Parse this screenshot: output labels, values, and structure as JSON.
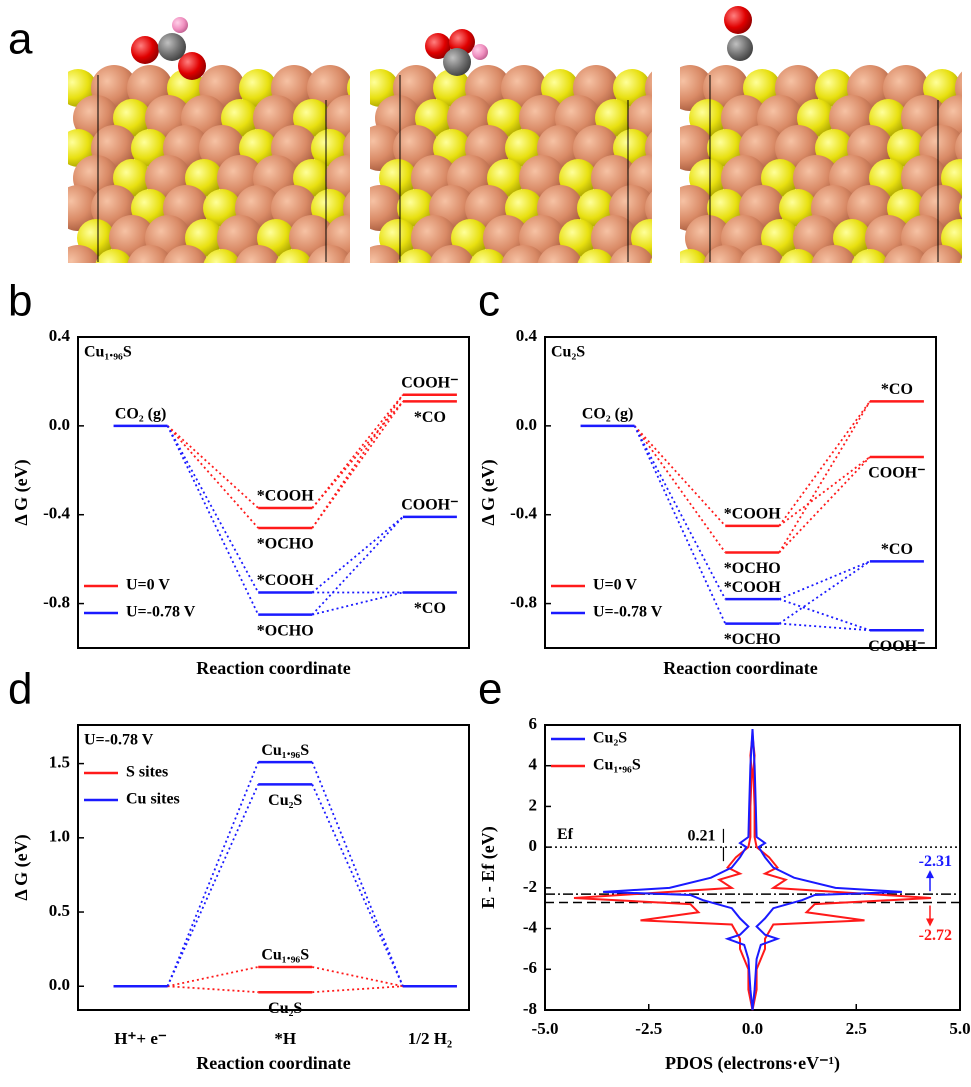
{
  "panel_labels": [
    "a",
    "b",
    "c",
    "d",
    "e"
  ],
  "chart_data": [
    {
      "type": "energy_levels",
      "annotation": "Cu₁.₉₆S",
      "y_label": "Δ G (eV)",
      "x_label": "Reaction coordinate",
      "ylim": [
        -1.0,
        0.4
      ],
      "yticks": [
        0.4,
        {
          "value": 0,
          "label": "0.0"
        },
        -0.4,
        -0.8
      ],
      "legend": "lower left",
      "series": [
        {
          "name": "U=0 V",
          "color": "#ff1a1a",
          "x": [
            1,
            1,
            2,
            2
          ],
          "values": [
            -0.37,
            -0.46,
            0.14,
            0.11
          ],
          "labels": [
            "*COOH",
            "*OCHO",
            "COOH⁻",
            "*CO"
          ]
        },
        {
          "name": "U=-0.78 V",
          "color": "#1a1aff",
          "x": [
            0,
            1,
            1,
            2,
            2
          ],
          "values": [
            0,
            -0.75,
            -0.85,
            -0.41,
            -0.75
          ],
          "labels": [
            "CO₂ (g)",
            "*COOH",
            "*OCHO",
            "COOH⁻",
            "*CO"
          ]
        }
      ]
    },
    {
      "type": "energy_levels",
      "annotation": "Cu₂S",
      "y_label": "Δ G (eV)",
      "x_label": "Reaction coordinate",
      "ylim": [
        -1.0,
        0.4
      ],
      "yticks": [
        0.4,
        {
          "value": 0,
          "label": "0.0"
        },
        -0.4,
        -0.8
      ],
      "legend": "lower left",
      "series": [
        {
          "name": "U=0 V",
          "color": "#ff1a1a",
          "x": [
            1,
            1,
            2,
            2
          ],
          "values": [
            -0.45,
            -0.57,
            0.11,
            -0.14
          ],
          "labels": [
            "*COOH",
            "*OCHO",
            "*CO",
            "COOH⁻"
          ]
        },
        {
          "name": "U=-0.78 V",
          "color": "#1a1aff",
          "x": [
            0,
            1,
            1,
            2,
            2
          ],
          "values": [
            0,
            -0.78,
            -0.89,
            -0.61,
            -0.92
          ],
          "labels": [
            "CO₂ (g)",
            "*COOH",
            "*OCHO",
            "*CO",
            "COOH⁻"
          ]
        }
      ]
    },
    {
      "type": "energy_levels",
      "annotation": "U=-0.78 V",
      "y_label": "Δ G (eV)",
      "x_label": "Reaction coordinate",
      "categories": [
        "H⁺+ e⁻",
        "*H",
        "1/2 H₂"
      ],
      "ylim": [
        -0.16,
        1.76
      ],
      "yticks": [
        {
          "value": 0,
          "label": "0.0"
        },
        0.5,
        {
          "value": 1,
          "label": "1.0"
        },
        1.5
      ],
      "legend": "upper left",
      "series": [
        {
          "name": "S sites",
          "color": "#ff1a1a",
          "x": [
            0,
            1,
            1,
            2
          ],
          "values": [
            0,
            0.13,
            -0.04,
            0
          ],
          "labels": [
            null,
            "Cu₁.₉₆S",
            "Cu₂S",
            null
          ]
        },
        {
          "name": "Cu sites",
          "color": "#1a1aff",
          "x": [
            0,
            1,
            1,
            2
          ],
          "values": [
            0,
            1.51,
            1.36,
            0
          ],
          "labels": [
            null,
            "Cu₁.₉₆S",
            "Cu₂S",
            null
          ]
        }
      ]
    },
    {
      "type": "line",
      "y_label": "E - Ef (eV)",
      "x_label": "PDOS (electrons·eV⁻¹)",
      "xlim": [
        -5,
        5
      ],
      "xticks": [
        {
          "value": -5,
          "label": "-5.0"
        },
        -2.5,
        {
          "value": 0,
          "label": "0.0"
        },
        2.5,
        {
          "value": 5,
          "label": "5.0"
        }
      ],
      "ylim": [
        -8,
        6
      ],
      "yticks": [
        6,
        4,
        2,
        0,
        -2,
        -4,
        -6,
        -8
      ],
      "legend": "upper left",
      "references": [
        {
          "value": 0,
          "label": "Ef"
        },
        {
          "value": -2.31,
          "color": "#1a1aff"
        },
        {
          "value": -2.72,
          "color": "#ff1a1a"
        }
      ],
      "gap": 0.21,
      "series": [
        {
          "name": "Cu₂S",
          "color": "#1a1aff",
          "x": [
            0,
            0.05,
            0.08,
            0.1,
            0.3,
            0.15,
            0.3,
            0.5,
            1.0,
            2.0,
            3.6,
            1.5,
            1.2,
            0.5,
            0.3,
            0.1,
            0.3,
            0.6,
            0.2,
            0.1,
            0.05,
            0,
            -0.05,
            -0.1,
            -0.2,
            -0.6,
            -0.3,
            -0.1,
            -0.3,
            -0.5,
            -1.2,
            -1.5,
            -3.6,
            -2.0,
            -1.0,
            -0.5,
            -0.3,
            -0.15,
            -0.3,
            -0.1,
            -0.08,
            -0.05,
            0
          ],
          "values": [
            5.8,
            4,
            2,
            0.5,
            0.2,
            0,
            -0.5,
            -1,
            -1.5,
            -2,
            -2.2,
            -2.35,
            -2.6,
            -3,
            -3.5,
            -3.9,
            -4.3,
            -4.5,
            -4.8,
            -5.5,
            -7,
            -8,
            -7,
            -5.5,
            -4.8,
            -4.5,
            -4.3,
            -3.9,
            -3.5,
            -3,
            -2.6,
            -2.35,
            -2.2,
            -2,
            -1.5,
            -1,
            -0.5,
            0,
            0.2,
            0.5,
            2,
            4,
            5.8
          ]
        },
        {
          "name": "Cu₁.₉₆S",
          "color": "#ff1a1a",
          "x": [
            0,
            0.05,
            0.02,
            0.05,
            0.05,
            0.1,
            0.4,
            0.6,
            0.3,
            0.8,
            0.5,
            4.3,
            1.5,
            1.3,
            2.7,
            0.5,
            0.3,
            0.3,
            0.2,
            0.1,
            0.1,
            0,
            -0.1,
            -0.1,
            -0.2,
            -0.3,
            -0.3,
            -0.5,
            -2.7,
            -1.3,
            -1.5,
            -4.3,
            -0.5,
            -0.8,
            -0.3,
            -0.6,
            -0.4,
            -0.1,
            -0.05,
            -0.05,
            -0.02,
            -0.05,
            0
          ],
          "values": [
            5.5,
            4.5,
            3.7,
            2,
            0.5,
            0,
            -0.5,
            -1,
            -1.3,
            -1.6,
            -2,
            -2.5,
            -2.8,
            -3.2,
            -3.6,
            -3.8,
            -4.5,
            -5,
            -5.5,
            -6,
            -7,
            -8,
            -7,
            -6,
            -5.5,
            -5,
            -4.5,
            -3.8,
            -3.6,
            -3.2,
            -2.8,
            -2.5,
            -2,
            -1.6,
            -1.3,
            -1,
            -0.5,
            0,
            0.5,
            2,
            3.7,
            4.5,
            5.5
          ]
        }
      ]
    }
  ]
}
